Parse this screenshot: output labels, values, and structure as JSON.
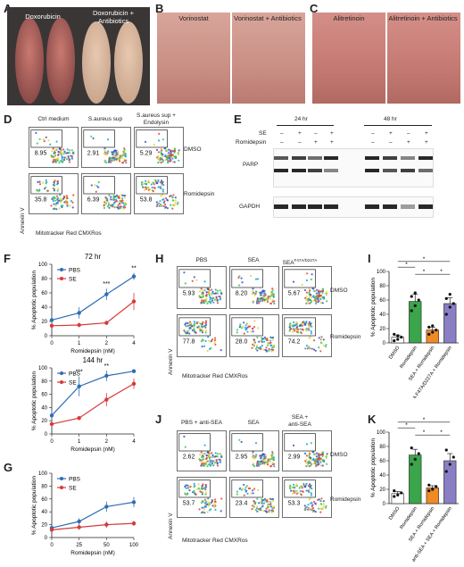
{
  "panels": {
    "A": {
      "letter": "A",
      "left": "Doxorubicin",
      "right": "Doxorubicin +\nAntibiotics"
    },
    "B": {
      "letter": "B",
      "left": "Vorinostat",
      "right": "Vorinostat + Antibiotics"
    },
    "C": {
      "letter": "C",
      "left": "Alitretinoin",
      "right": "Alitretinoin + Antibiotics"
    },
    "D": {
      "letter": "D",
      "cols": [
        "Ctrl medium",
        "S.aureus sup",
        "S.aureus sup +\nEndolysin"
      ],
      "rows": [
        "DMSO",
        "Romidepsin"
      ],
      "values": [
        [
          "8.95",
          "2.91",
          "5.29"
        ],
        [
          "35.8",
          "6.39",
          "53.8"
        ]
      ],
      "ylabel": "Annexin V",
      "xlabel": "Mitotracker Red CMXRos"
    },
    "E": {
      "letter": "E",
      "times": [
        "24 hr",
        "48 hr"
      ],
      "row_se": "SE",
      "row_romi": "Romidepsin",
      "se_signs": [
        "–",
        "+",
        "–",
        "+",
        "–",
        "+",
        "–",
        "+"
      ],
      "romi_signs": [
        "–",
        "–",
        "+",
        "+",
        "–",
        "–",
        "+",
        "+"
      ],
      "bands": [
        "PARP",
        "GAPDH"
      ]
    },
    "H": {
      "letter": "H",
      "cols": [
        "PBS",
        "SEA",
        "SEA"
      ],
      "sup": "F47A/D227A",
      "rows": [
        "DMSO",
        "Romidepsin"
      ],
      "values": [
        [
          "5.93",
          "8.20",
          "5.67"
        ],
        [
          "77.8",
          "28.0",
          "74.2"
        ]
      ],
      "ylabel": "Annexin V",
      "xlabel": "Mitotracker Red CMXRos"
    },
    "J": {
      "letter": "J",
      "cols": [
        "PBS + anti-SEA",
        "SEA",
        "SEA +\nanti-SEA"
      ],
      "rows": [
        "DMSO",
        "Romidepsin"
      ],
      "values": [
        [
          "2.62",
          "2.95",
          "2.99"
        ],
        [
          "53.7",
          "23.4",
          "53.3"
        ]
      ],
      "ylabel": "Annexin V",
      "xlabel": "Mitotracker Red CMXRos"
    }
  },
  "chart_data": [
    {
      "panel": "F",
      "type": "line",
      "title": "72 hr",
      "xlabel": "Romidepsin (nM)",
      "ylabel": "% Apoptotic population",
      "x": [
        0,
        1,
        2,
        4
      ],
      "ylim": [
        0,
        100
      ],
      "yticks": [
        0,
        20,
        40,
        60,
        80,
        100
      ],
      "series": [
        {
          "name": "PBS",
          "color": "#2f6db5",
          "values": [
            22,
            32,
            58,
            83
          ],
          "err": [
            6,
            8,
            8,
            5
          ]
        },
        {
          "name": "SE",
          "color": "#d63a3a",
          "values": [
            14,
            15,
            18,
            48
          ],
          "err": [
            3,
            3,
            3,
            12
          ]
        }
      ],
      "sig": [
        {
          "x": 2,
          "label": "***"
        },
        {
          "x": 4,
          "label": "**"
        }
      ]
    },
    {
      "panel": "F",
      "type": "line",
      "title": "144 hr",
      "xlabel": "Romidepsin (nM)",
      "ylabel": "% Apoptotic population",
      "x": [
        0,
        1,
        2,
        4
      ],
      "ylim": [
        0,
        100
      ],
      "yticks": [
        0,
        20,
        40,
        60,
        80,
        100
      ],
      "series": [
        {
          "name": "PBS",
          "color": "#2f6db5",
          "values": [
            28,
            72,
            88,
            95
          ],
          "err": [
            8,
            15,
            8,
            3
          ]
        },
        {
          "name": "SE",
          "color": "#d63a3a",
          "values": [
            15,
            24,
            52,
            76
          ],
          "err": [
            4,
            3,
            10,
            8
          ]
        }
      ],
      "sig": [
        {
          "x": 1,
          "label": "***"
        },
        {
          "x": 2,
          "label": "**"
        }
      ]
    },
    {
      "panel": "G",
      "type": "line",
      "xlabel": "Romidepsin (nM)",
      "ylabel": "% Apoptotic population",
      "x": [
        0,
        25,
        50,
        100
      ],
      "ylim": [
        0,
        100
      ],
      "yticks": [
        0,
        20,
        40,
        60,
        80,
        100
      ],
      "series": [
        {
          "name": "PBS",
          "color": "#2f6db5",
          "values": [
            15,
            25,
            48,
            55
          ],
          "err": [
            3,
            5,
            8,
            8
          ]
        },
        {
          "name": "SE",
          "color": "#d63a3a",
          "values": [
            12,
            16,
            20,
            22
          ],
          "err": [
            3,
            4,
            5,
            4
          ]
        }
      ]
    },
    {
      "panel": "I",
      "type": "bar",
      "ylabel": "% Apoptotic population",
      "ylim": [
        0,
        100
      ],
      "yticks": [
        0,
        20,
        40,
        60,
        80,
        100
      ],
      "categories": [
        "DMSO",
        "Romidepsin",
        "SEA + Romidepsin",
        "SEA F47A/D227A + Romidepsin"
      ],
      "values": [
        8,
        58,
        18,
        55
      ],
      "err": [
        3,
        10,
        4,
        8
      ],
      "colors": [
        "#ffffff",
        "#3aa54a",
        "#f08a24",
        "#8a7fc4"
      ],
      "points": [
        [
          3,
          5,
          8,
          12,
          10
        ],
        [
          45,
          52,
          60,
          65,
          70
        ],
        [
          12,
          15,
          18,
          22,
          24
        ],
        [
          40,
          50,
          55,
          62,
          68
        ]
      ],
      "sig": [
        "*",
        "*",
        "*",
        "*"
      ]
    },
    {
      "panel": "K",
      "type": "bar",
      "ylabel": "% Apoptotic population",
      "ylim": [
        0,
        100
      ],
      "yticks": [
        0,
        20,
        40,
        60,
        80,
        100
      ],
      "categories": [
        "DMSO",
        "Romidepsin",
        "SEA + Romidepsin",
        "anti-SEA + SEA + Romidepsin"
      ],
      "values": [
        14,
        68,
        22,
        60
      ],
      "err": [
        3,
        8,
        3,
        10
      ],
      "colors": [
        "#ffffff",
        "#3aa54a",
        "#f08a24",
        "#8a7fc4"
      ],
      "points": [
        [
          10,
          12,
          15,
          18
        ],
        [
          55,
          62,
          70,
          78
        ],
        [
          18,
          20,
          24,
          26
        ],
        [
          45,
          55,
          65,
          75
        ]
      ],
      "sig": [
        "*",
        "*",
        "*",
        "*",
        "*"
      ]
    }
  ]
}
